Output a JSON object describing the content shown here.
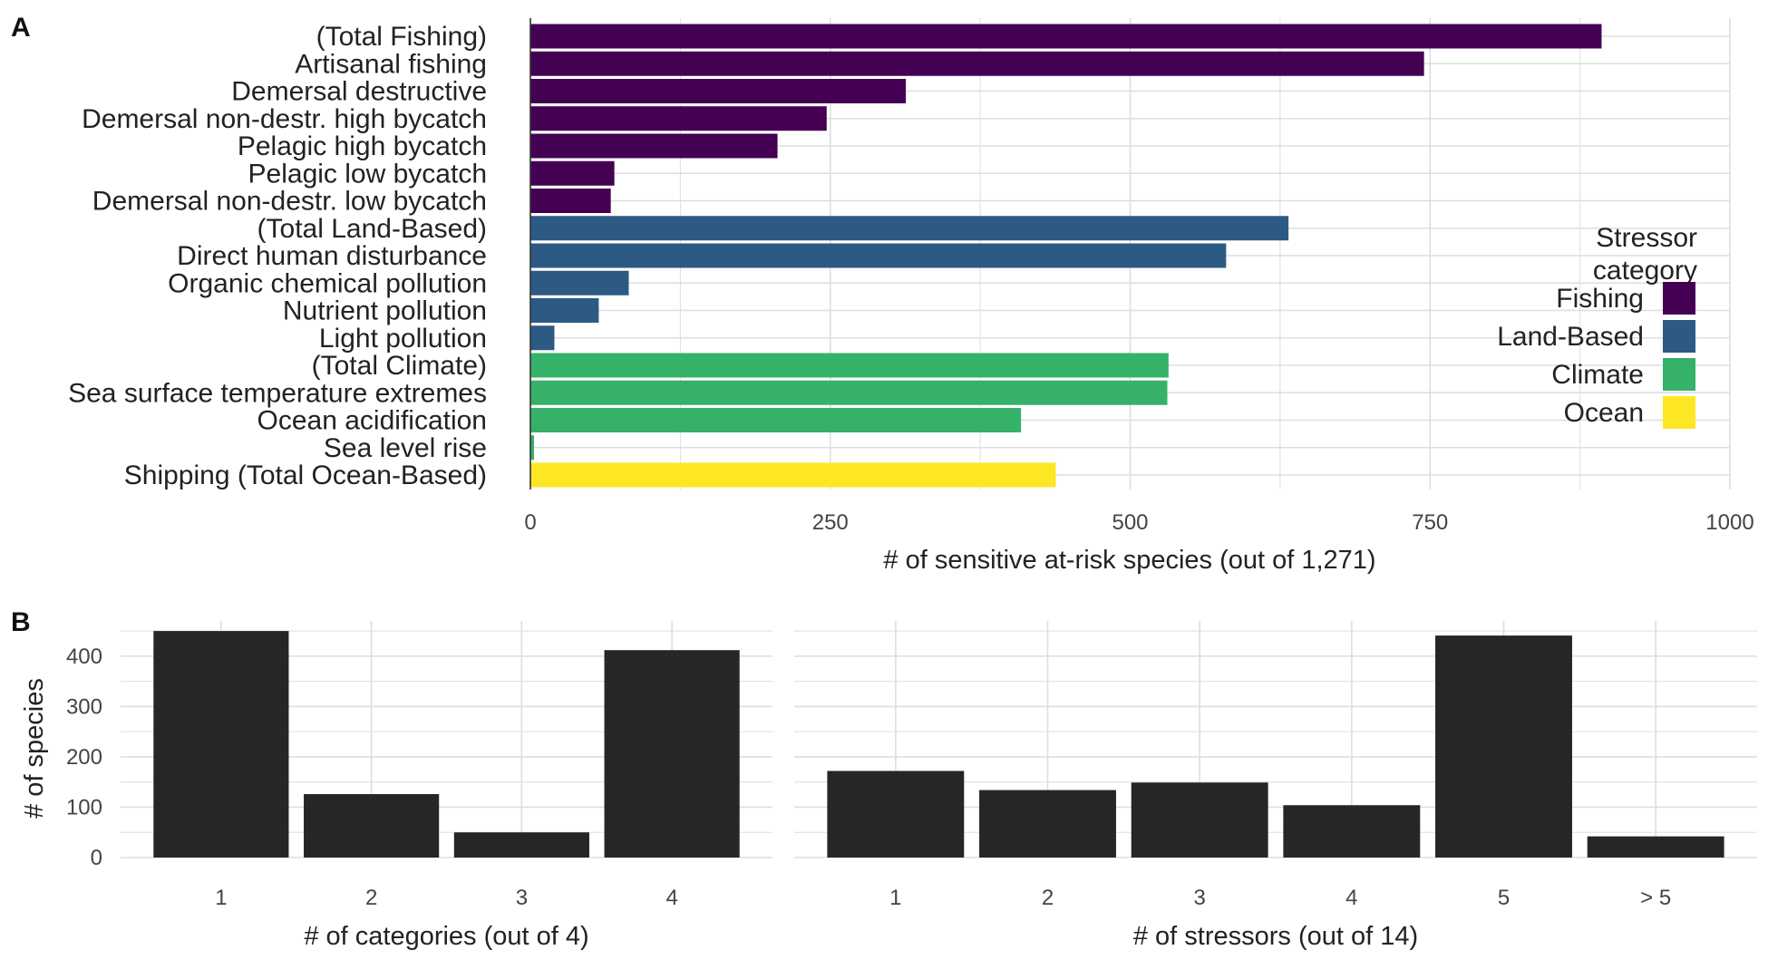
{
  "panel_labels": {
    "a": "A",
    "b": "B"
  },
  "legend": {
    "title_line1": "Stressor",
    "title_line2": "category",
    "items": [
      {
        "label": "Fishing",
        "color": "#440154"
      },
      {
        "label": "Land-Based",
        "color": "#2c5a83"
      },
      {
        "label": "Climate",
        "color": "#35b169"
      },
      {
        "label": "Ocean",
        "color": "#fde725"
      }
    ]
  },
  "chart_data": [
    {
      "type": "bar",
      "orientation": "horizontal",
      "categories": [
        "(Total Fishing)",
        "Artisanal fishing",
        "Demersal destructive",
        "Demersal non-destr. high bycatch",
        "Pelagic high bycatch",
        "Pelagic low bycatch",
        "Demersal non-destr. low bycatch",
        "(Total Land-Based)",
        "Direct human disturbance",
        "Organic chemical pollution",
        "Nutrient pollution",
        "Light pollution",
        "(Total Climate)",
        "Sea surface temperature extremes",
        "Ocean acidification",
        "Sea level rise",
        "Shipping (Total Ocean-Based)"
      ],
      "values": [
        893,
        745,
        313,
        247,
        206,
        70,
        67,
        632,
        580,
        82,
        57,
        20,
        532,
        531,
        409,
        3,
        438
      ],
      "groups": [
        "Fishing",
        "Fishing",
        "Fishing",
        "Fishing",
        "Fishing",
        "Fishing",
        "Fishing",
        "Land-Based",
        "Land-Based",
        "Land-Based",
        "Land-Based",
        "Land-Based",
        "Climate",
        "Climate",
        "Climate",
        "Climate",
        "Ocean"
      ],
      "xlabel": "# of sensitive at-risk species (out of 1,271)",
      "xlim": [
        0,
        1000
      ],
      "xticks": [
        "0",
        "250",
        "500",
        "750",
        "1000"
      ],
      "grid": true,
      "legend_position": "right"
    },
    {
      "type": "bar",
      "categories": [
        "1",
        "2",
        "3",
        "4"
      ],
      "values": [
        450,
        126,
        50,
        412
      ],
      "xlabel": "# of categories (out of 4)",
      "ylabel": "# of species",
      "ylim": [
        0,
        470
      ],
      "yticks": [
        "0",
        "100",
        "200",
        "300",
        "400"
      ],
      "grid": true
    },
    {
      "type": "bar",
      "categories": [
        "1",
        "2",
        "3",
        "4",
        "5",
        "> 5"
      ],
      "values": [
        172,
        134,
        149,
        104,
        441,
        42
      ],
      "xlabel": "# of stressors (out of 14)",
      "ylim": [
        0,
        470
      ],
      "grid": true
    }
  ]
}
